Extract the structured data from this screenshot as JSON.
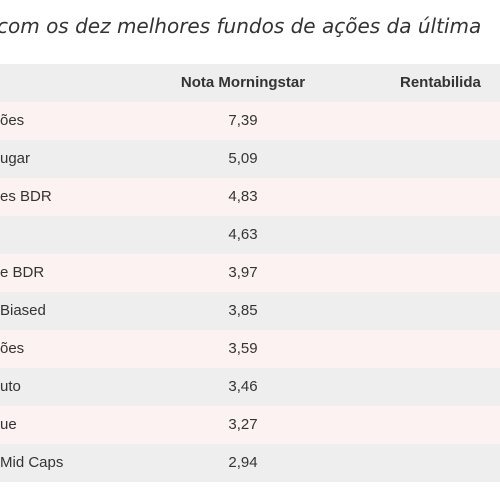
{
  "caption": "com os dez melhores fundos de ações da última",
  "table": {
    "headers": {
      "fund": "",
      "nota": "Nota Morningstar",
      "rentabilidade": "Rentabilida"
    },
    "rows": [
      {
        "fund": "ões",
        "nota": "7,39",
        "rentabilidade": ""
      },
      {
        "fund": "ugar",
        "nota": "5,09",
        "rentabilidade": ""
      },
      {
        "fund": "es BDR",
        "nota": "4,83",
        "rentabilidade": ""
      },
      {
        "fund": "",
        "nota": "4,63",
        "rentabilidade": ""
      },
      {
        "fund": "e BDR",
        "nota": "3,97",
        "rentabilidade": ""
      },
      {
        "fund": "Biased",
        "nota": "3,85",
        "rentabilidade": ""
      },
      {
        "fund": "ões",
        "nota": "3,59",
        "rentabilidade": ""
      },
      {
        "fund": "uto",
        "nota": "3,46",
        "rentabilidade": ""
      },
      {
        "fund": "ue",
        "nota": "3,27",
        "rentabilidade": ""
      },
      {
        "fund": "Mid Caps",
        "nota": "2,94",
        "rentabilidade": ""
      }
    ]
  },
  "colors": {
    "row_pink": "#fdf2f2",
    "row_gray": "#eeeeee",
    "text": "#333333"
  }
}
